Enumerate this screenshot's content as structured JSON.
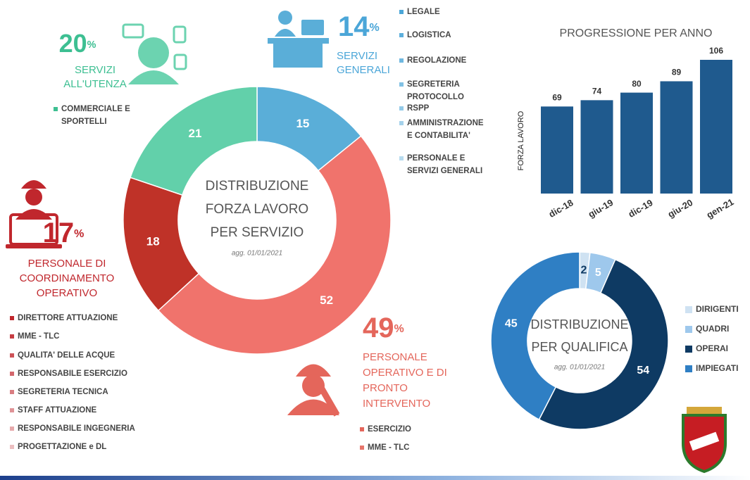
{
  "chart_data": [
    {
      "type": "donut",
      "title": [
        "DISTRIBUZIONE",
        "FORZA LAVORO",
        "PER SERVIZIO"
      ],
      "subtitle": "agg. 01/01/2021",
      "values": [
        15,
        52,
        18,
        21
      ],
      "colors": [
        "#5aaed8",
        "#f0736c",
        "#bf3228",
        "#62d0aa"
      ]
    },
    {
      "type": "bar",
      "title": "PROGRESSIONE PER ANNO",
      "y_label": "FORZA LAVORO",
      "categories": [
        "dic-18",
        "giu-19",
        "dic-19",
        "giu-20",
        "gen-21"
      ],
      "values": [
        69,
        74,
        80,
        89,
        106
      ],
      "color": "#1f5a8e",
      "ylim": [
        0,
        106
      ]
    },
    {
      "type": "donut",
      "title": [
        "DISTRIBUZIONE",
        "PER QUALIFICA"
      ],
      "subtitle": "agg. 01/01/2021",
      "categories": [
        "DIRIGENTI",
        "QUADRI",
        "OPERAI",
        "IMPIEGATI"
      ],
      "values": [
        2,
        5,
        54,
        45
      ],
      "colors": [
        "#cfe2f2",
        "#9ec8ec",
        "#0e3a63",
        "#2f7fc4"
      ],
      "legend": "right"
    }
  ],
  "percent_unit": "%",
  "sections": [
    {
      "percent": 20,
      "color": "#3dbf92",
      "name": [
        "SERVIZI",
        "ALL'UTENZA"
      ],
      "items": [
        [
          "COMMERCIALE E",
          "SPORTELLI"
        ]
      ]
    },
    {
      "percent": 14,
      "color": "#4ba6d8",
      "name": [
        "SERVIZI",
        "GENERALI"
      ],
      "items": [
        [
          "LEGALE"
        ],
        [
          "LOGISTICA"
        ],
        [
          "REGOLAZIONE"
        ],
        [
          "SEGRETERIA",
          "PROTOCOLLO"
        ],
        [
          "RSPP"
        ],
        [
          "AMMINISTRAZIONE",
          "E CONTABILITA'"
        ],
        [
          "PERSONALE E",
          "SERVIZI GENERALI"
        ]
      ]
    },
    {
      "percent": 17,
      "color": "#c0272d",
      "name": [
        "PERSONALE DI",
        "COORDINAMENTO",
        "OPERATIVO"
      ],
      "items": [
        [
          "DIRETTORE ATTUAZIONE"
        ],
        [
          "MME - TLC"
        ],
        [
          "QUALITA' DELLE ACQUE"
        ],
        [
          "RESPONSABILE ESERCIZIO"
        ],
        [
          "SEGRETERIA TECNICA"
        ],
        [
          "STAFF ATTUAZIONE"
        ],
        [
          "RESPONSABILE INGEGNERIA"
        ],
        [
          "PROGETTAZIONE e DL"
        ]
      ]
    },
    {
      "percent": 49,
      "color": "#e4665b",
      "name": [
        "PERSONALE",
        "OPERATIVO E DI",
        "PRONTO",
        "INTERVENTO"
      ],
      "items": [
        [
          "ESERCIZIO"
        ],
        [
          "MME - TLC"
        ]
      ]
    }
  ]
}
